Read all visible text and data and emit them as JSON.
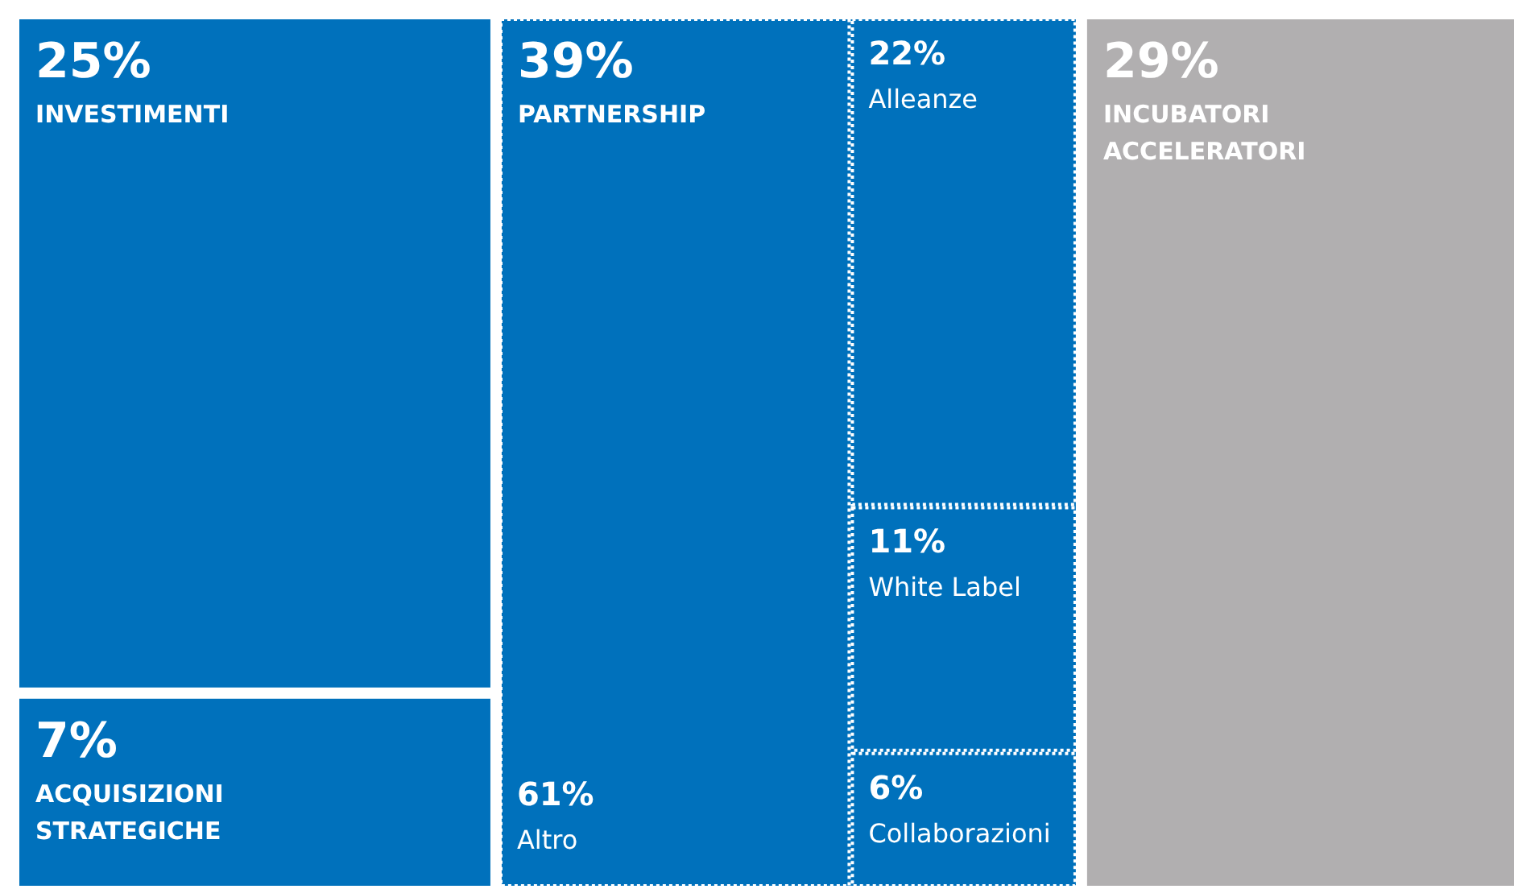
{
  "chart_data": [
    {
      "type": "other",
      "categories": [
        "INVESTIMENTI",
        "ACQUISIZIONI STRATEGICHE",
        "PARTNERSHIP",
        "INCUBATORI ACCELERATORI"
      ],
      "values": [
        25,
        7,
        39,
        29
      ],
      "value_labels": [
        "25%",
        "7%",
        "39%",
        "29%"
      ],
      "colors": [
        "#0071bc",
        "#0071bc",
        "#0071bc",
        "#b1afb0"
      ]
    },
    {
      "type": "other",
      "categories": [
        "Altro",
        "Alleanze",
        "White Label",
        "Collaborazioni"
      ],
      "values": [
        61,
        22,
        11,
        6
      ],
      "value_labels": [
        "61%",
        "22%",
        "11%",
        "6%"
      ]
    }
  ]
}
